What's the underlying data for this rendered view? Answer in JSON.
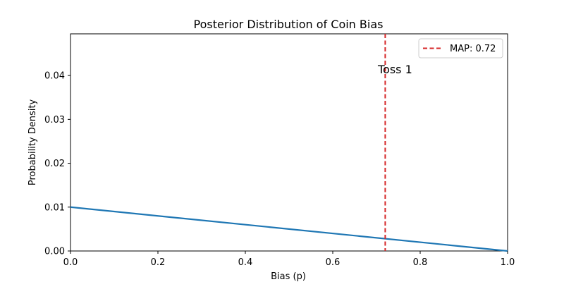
{
  "chart_data": {
    "type": "line",
    "title": "Posterior Distribution of Coin Bias",
    "xlabel": "Bias (p)",
    "ylabel": "Probability Density",
    "xlim": [
      0.0,
      1.0
    ],
    "ylim": [
      0.0,
      0.0495
    ],
    "x_ticks": [
      0.0,
      0.2,
      0.4,
      0.6,
      0.8,
      1.0
    ],
    "x_tick_labels": [
      "0.0",
      "0.2",
      "0.4",
      "0.6",
      "0.8",
      "1.0"
    ],
    "y_ticks": [
      0.0,
      0.01,
      0.02,
      0.03,
      0.04
    ],
    "y_tick_labels": [
      "0.00",
      "0.01",
      "0.02",
      "0.03",
      "0.04"
    ],
    "grid": false,
    "series": [
      {
        "color": "#1f77b4",
        "x": [
          0.0,
          1.0
        ],
        "y": [
          0.01,
          0.0
        ]
      }
    ],
    "vline": {
      "x": 0.72,
      "color": "#d62728",
      "style": "dashed",
      "label": "MAP: 0.72"
    },
    "annotation": {
      "text": "Toss 1",
      "x": 0.72,
      "y": 0.04
    },
    "legend": {
      "placement": "top-right"
    }
  }
}
